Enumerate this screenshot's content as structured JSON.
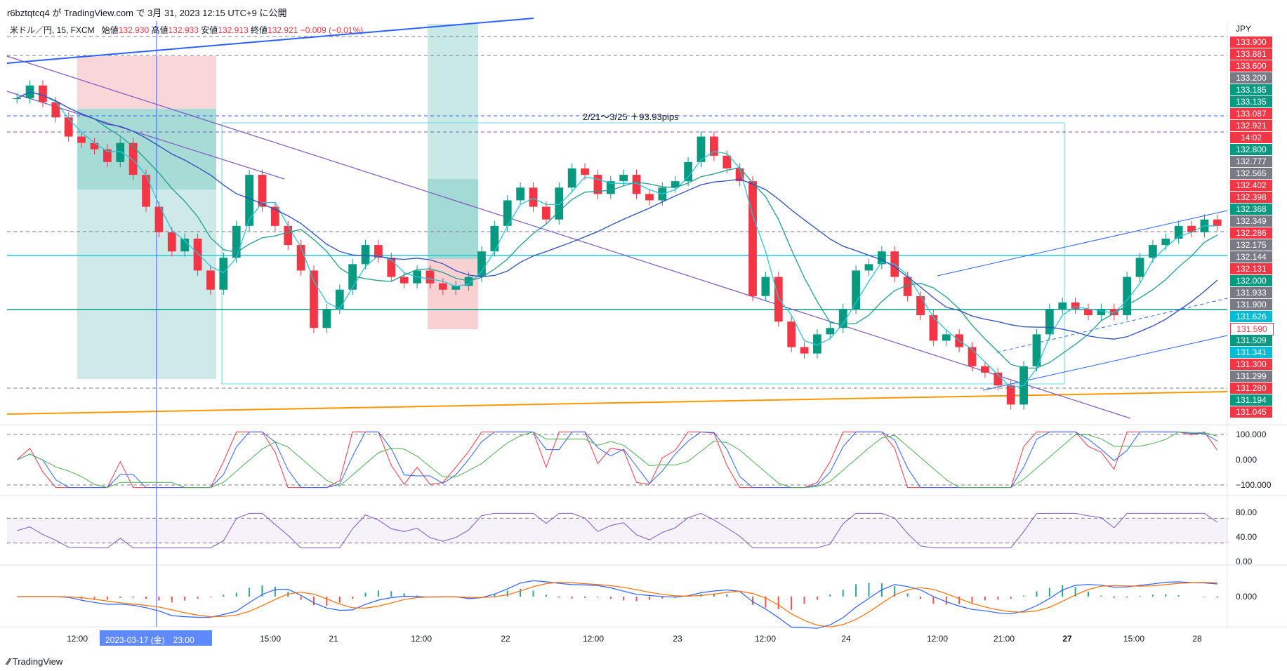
{
  "header": {
    "publisher_line": "r6bztqtcq4 が TradingView.com で 3月 31, 2023 12:15 UTC+9 に公開",
    "symbol": "米ドル／円, 15, FXCM",
    "open_label": "始値",
    "open": "132.930",
    "high_label": "高値",
    "high": "132.933",
    "low_label": "安値",
    "low": "132.913",
    "close_label": "終値",
    "close": "132.921",
    "change": "−0.009 (−0.01%)"
  },
  "footer": {
    "brand": "TradingView"
  },
  "chart_data": {
    "type": "candlestick",
    "symbol": "USD/JPY",
    "timeframe": "15",
    "currency": "JPY",
    "annotation": "2/21〜3/25 ＋93.93pips",
    "x_ticks": [
      "12:00",
      "15:00",
      "21",
      "12:00",
      "22",
      "12:00",
      "23",
      "12:00",
      "24",
      "12:00",
      "21:00",
      "27",
      "15:00",
      "28"
    ],
    "x_bold_tick": "27",
    "crosshair_label": "2023-03-17 (金)　23:00",
    "price_ylim": [
      130.92,
      134.0
    ],
    "price_labels": [
      {
        "v": "133.900",
        "c": "#f23645"
      },
      {
        "v": "133.881",
        "c": "#f23645"
      },
      {
        "v": "133.600",
        "c": "#f23645"
      },
      {
        "v": "133.200",
        "c": "#787b86"
      },
      {
        "v": "133.185",
        "c": "#089981"
      },
      {
        "v": "133.135",
        "c": "#089981"
      },
      {
        "v": "133.087",
        "c": "#f23645"
      },
      {
        "v": "132.921",
        "c": "#f23645"
      },
      {
        "v": "14:02",
        "c": "#f23645"
      },
      {
        "v": "132.800",
        "c": "#089981"
      },
      {
        "v": "132.777",
        "c": "#787b86"
      },
      {
        "v": "132.565",
        "c": "#787b86"
      },
      {
        "v": "132.402",
        "c": "#f23645"
      },
      {
        "v": "132.398",
        "c": "#f23645"
      },
      {
        "v": "132.368",
        "c": "#089981"
      },
      {
        "v": "132.349",
        "c": "#787b86"
      },
      {
        "v": "132.286",
        "c": "#f23645"
      },
      {
        "v": "132.175",
        "c": "#787b86"
      },
      {
        "v": "132.144",
        "c": "#787b86"
      },
      {
        "v": "132.131",
        "c": "#f23645"
      },
      {
        "v": "132.000",
        "c": "#089981"
      },
      {
        "v": "131.933",
        "c": "#787b86"
      },
      {
        "v": "131.900",
        "c": "#787b86"
      },
      {
        "v": "131.626",
        "c": "#00bcd4"
      },
      {
        "v": "131.590",
        "c": "#ffffff"
      },
      {
        "v": "131.509",
        "c": "#089981"
      },
      {
        "v": "131.341",
        "c": "#00bcd4"
      },
      {
        "v": "131.300",
        "c": "#f23645"
      },
      {
        "v": "131.299",
        "c": "#787b86"
      },
      {
        "v": "131.280",
        "c": "#f23645"
      },
      {
        "v": "131.194",
        "c": "#089981"
      },
      {
        "v": "131.045",
        "c": "#f23645"
      }
    ],
    "close_series": [
      133.45,
      133.55,
      133.42,
      133.3,
      133.15,
      133.1,
      133.05,
      132.95,
      133.1,
      132.85,
      132.6,
      132.4,
      132.25,
      132.35,
      132.1,
      131.95,
      132.2,
      132.45,
      132.85,
      132.6,
      132.45,
      132.3,
      132.1,
      131.65,
      131.8,
      131.95,
      132.15,
      132.3,
      132.2,
      132.05,
      132.0,
      132.1,
      132.0,
      131.95,
      131.98,
      132.05,
      132.25,
      132.45,
      132.65,
      132.75,
      132.6,
      132.5,
      132.75,
      132.9,
      132.85,
      132.7,
      132.8,
      132.85,
      132.7,
      132.65,
      132.75,
      132.8,
      132.95,
      133.15,
      133.0,
      132.9,
      132.8,
      131.9,
      132.05,
      131.7,
      131.5,
      131.45,
      131.6,
      131.65,
      131.8,
      132.1,
      132.15,
      132.25,
      132.05,
      131.9,
      131.75,
      131.55,
      131.6,
      131.5,
      131.35,
      131.3,
      131.2,
      131.05,
      131.35,
      131.6,
      131.8,
      131.85,
      131.8,
      131.75,
      131.8,
      131.75,
      132.05,
      132.2,
      132.3,
      132.35,
      132.45,
      132.4,
      132.5,
      132.45
    ],
    "stoch_ylim": [
      -125,
      125
    ],
    "stoch_labels": [
      "100.000",
      "0.000",
      "−100.000"
    ],
    "rsi_ylim": [
      0,
      100
    ],
    "rsi_labels": [
      "80.00",
      "40.00",
      "0.00"
    ],
    "macd_labels": [
      "0.000"
    ],
    "colors": {
      "up": "#089981",
      "down": "#f23645",
      "ma_fast": "#26c6da",
      "ma_mid": "#1e9e8f",
      "ma_slow": "#2a4dbf",
      "rsi": "#7e57c2",
      "macd": "#2962ff",
      "signal": "#ff6d00",
      "green_line": "#089981",
      "orange_line": "#ff9800"
    }
  }
}
